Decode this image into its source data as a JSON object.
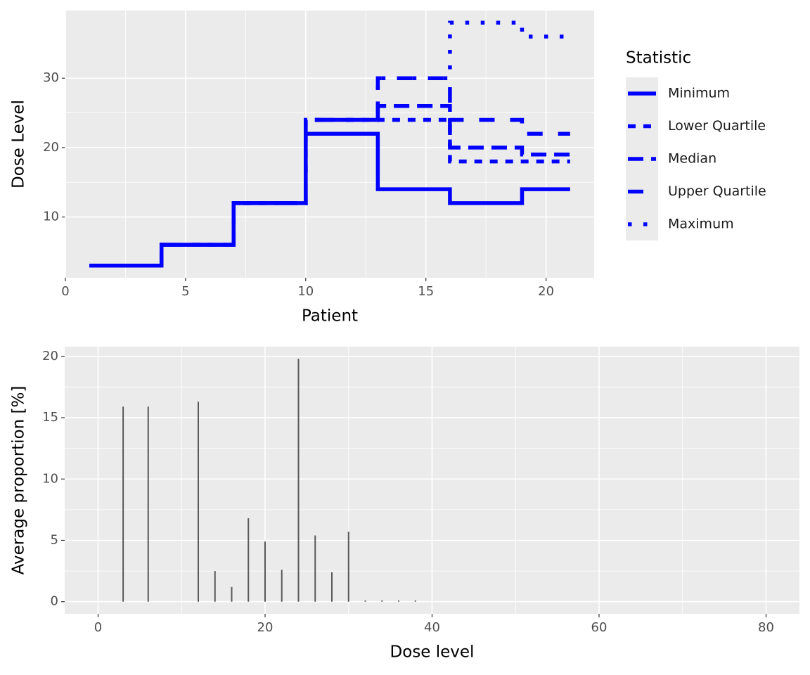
{
  "chart_data": [
    {
      "type": "line",
      "step": true,
      "xlabel": "Patient",
      "ylabel": "Dose Level",
      "legend_title": "Statistic",
      "legend": "right",
      "grid": true,
      "x": [
        1,
        2,
        3,
        4,
        5,
        6,
        7,
        8,
        9,
        10,
        11,
        12,
        13,
        14,
        15,
        16,
        17,
        18,
        19,
        20,
        21
      ],
      "series": [
        {
          "name": "Minimum",
          "color": "#0000ff",
          "dash": "solid",
          "values": [
            3,
            3,
            3,
            6,
            6,
            6,
            12,
            12,
            12,
            22,
            22,
            22,
            14,
            14,
            14,
            12,
            12,
            12,
            14,
            14,
            14
          ]
        },
        {
          "name": "Lower Quartile",
          "color": "#0000ff",
          "dash": "22",
          "values": [
            3,
            3,
            3,
            6,
            6,
            6,
            12,
            12,
            12,
            24,
            24,
            24,
            24,
            24,
            24,
            18,
            18,
            18,
            18,
            18,
            18
          ]
        },
        {
          "name": "Median",
          "color": "#0000ff",
          "dash": "42",
          "values": [
            3,
            3,
            3,
            6,
            6,
            6,
            12,
            12,
            12,
            24,
            24,
            24,
            26,
            26,
            26,
            20,
            20,
            20,
            19,
            19,
            19
          ]
        },
        {
          "name": "Upper Quartile",
          "color": "#0000ff",
          "dash": "44",
          "values": [
            3,
            3,
            3,
            6,
            6,
            6,
            12,
            12,
            12,
            24,
            24,
            24,
            30,
            30,
            30,
            24,
            24,
            24,
            22,
            22,
            22
          ]
        },
        {
          "name": "Maximum",
          "color": "#0000ff",
          "dash": "13",
          "values": [
            3,
            3,
            3,
            6,
            6,
            6,
            12,
            12,
            12,
            24,
            24,
            24,
            30,
            30,
            30,
            38,
            38,
            38,
            36,
            36,
            36
          ]
        }
      ],
      "xlim": [
        0,
        22
      ],
      "xticks": [
        0,
        5,
        10,
        15,
        20
      ],
      "ylim": [
        1.25,
        39.75
      ],
      "yticks": [
        10,
        20,
        30
      ]
    },
    {
      "type": "bar",
      "xlabel": "Dose level",
      "ylabel": "Average proportion [%]",
      "grid": true,
      "color": "#595959",
      "x": [
        3,
        6,
        12,
        14,
        16,
        18,
        20,
        22,
        24,
        26,
        28,
        30,
        32,
        34,
        36,
        38
      ],
      "values": [
        15.9,
        15.9,
        16.3,
        2.5,
        1.2,
        6.8,
        4.9,
        2.6,
        19.8,
        5.4,
        2.4,
        5.7,
        0.1,
        0.1,
        0.1,
        0.1
      ],
      "xlim": [
        -4,
        84
      ],
      "xticks": [
        0,
        20,
        40,
        60,
        80
      ],
      "ylim": [
        -0.99,
        20.79
      ],
      "yticks": [
        0,
        5,
        10,
        15,
        20
      ]
    }
  ]
}
